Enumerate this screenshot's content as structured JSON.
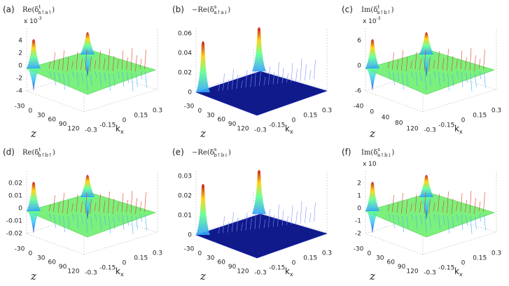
{
  "panels": [
    {
      "label": "(a)",
      "title": {
        "pre": "Re(δ",
        "sup": "t",
        "sub": "a↑a↑",
        "post": ")"
      },
      "multiplier": {
        "text": "x 10",
        "exp": -3
      },
      "vticks": [
        4,
        2,
        0,
        -2,
        -4
      ],
      "zticks": [
        -30,
        0,
        30,
        60,
        90,
        120
      ],
      "kxticks": [
        -0.3,
        -0.15,
        0,
        0.15,
        0.3
      ],
      "zlabel": "z",
      "kxlabel": {
        "base": "k",
        "sub": "x"
      }
    },
    {
      "label": "(b)",
      "title": {
        "pre": "−Re(δ",
        "sup": "s",
        "sub": "a↑a↓",
        "post": ")"
      },
      "vticks": [
        0.06,
        0.04,
        0.02,
        0
      ],
      "zticks": [
        -30,
        0,
        30,
        60,
        90,
        120
      ],
      "kxticks": [
        -0.3,
        -0.15,
        0,
        0.15,
        0.3
      ],
      "zlabel": "z",
      "kxlabel": {
        "base": "k",
        "sub": "x"
      }
    },
    {
      "label": "(c)",
      "title": {
        "pre": "Im(δ",
        "sup": "t",
        "sub": "a↑b↑",
        "post": ")"
      },
      "multiplier": {
        "text": "x 10",
        "exp": -3
      },
      "vticks": [
        6,
        0,
        -6
      ],
      "zticks": [
        -40,
        0,
        40,
        80,
        120
      ],
      "kxticks": [
        -0.3,
        -0.15,
        0,
        0.15,
        0.3
      ],
      "zlabel": "z",
      "kxlabel": {
        "base": "k",
        "sub": "x"
      }
    },
    {
      "label": "(d)",
      "title": {
        "pre": "Re(δ",
        "sup": "t",
        "sub": "b↑b↑",
        "post": ")"
      },
      "vticks": [
        0.02,
        0.01,
        0,
        -0.01,
        -0.02
      ],
      "zticks": [
        -30,
        0,
        30,
        60,
        90,
        120
      ],
      "kxticks": [
        -0.3,
        -0.15,
        0,
        0.15,
        0.3
      ],
      "zlabel": "z",
      "kxlabel": {
        "base": "k",
        "sub": "x"
      }
    },
    {
      "label": "(e)",
      "title": {
        "pre": "−Re(δ",
        "sup": "s",
        "sub": "b↑b↓",
        "post": ")"
      },
      "vticks": [
        0.03,
        0.02,
        0.01,
        0
      ],
      "zticks": [
        -30,
        0,
        30,
        60,
        90,
        120
      ],
      "kxticks": [
        -0.3,
        -0.15,
        0,
        0.15,
        0.3
      ],
      "zlabel": "z",
      "kxlabel": {
        "base": "k",
        "sub": "x"
      }
    },
    {
      "label": "(f)",
      "title": {
        "pre": "Im(δ",
        "sup": "s",
        "sub": "a↑b↓",
        "post": ")"
      },
      "multiplier": {
        "text": "x 10"
      },
      "vticks": [
        2,
        1,
        0,
        -1,
        -2
      ],
      "zticks": [
        -30,
        0,
        30,
        60,
        90,
        120
      ],
      "kxticks": [
        -0.3,
        -0.15,
        0,
        0.15,
        0.3
      ],
      "zlabel": "z",
      "kxlabel": {
        "base": "k",
        "sub": "x"
      }
    }
  ]
}
